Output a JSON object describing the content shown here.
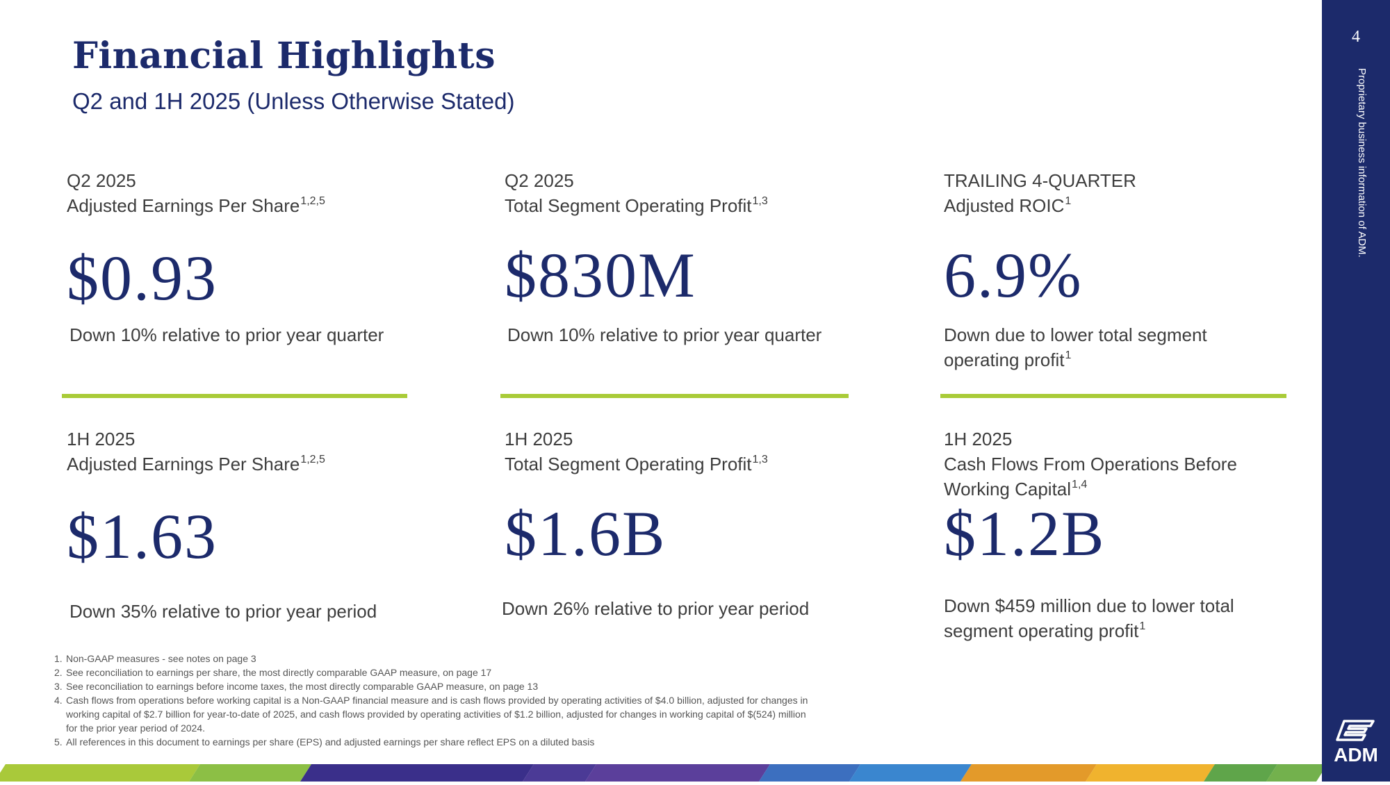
{
  "header": {
    "title": "Financial Highlights",
    "subtitle": "Q2 and 1H 2025 (Unless Otherwise Stated)"
  },
  "metrics": [
    {
      "period": "Q2 2025",
      "label": "Adjusted Earnings Per Share",
      "sup": "1,2,5",
      "value": "$0.93",
      "desc": "Down 10% relative to prior year quarter"
    },
    {
      "period": "Q2 2025",
      "label": "Total Segment Operating Profit",
      "sup": "1,3",
      "value": "$830M",
      "desc": "Down 10% relative to prior year quarter"
    },
    {
      "period": "TRAILING 4-QUARTER",
      "label": "Adjusted ROIC",
      "sup": "1",
      "value": "6.9%",
      "desc_line1": "Down due to lower total segment",
      "desc_line2": "operating profit",
      "desc_sup": "1"
    },
    {
      "period": "1H 2025",
      "label": "Adjusted Earnings Per Share",
      "sup": "1,2,5",
      "value": "$1.63",
      "desc": "Down 35% relative to prior year period"
    },
    {
      "period": "1H 2025",
      "label": "Total Segment Operating Profit",
      "sup": "1,3",
      "value": "$1.6B",
      "desc": "Down 26% relative to prior year period"
    },
    {
      "period": "1H 2025",
      "label_line1": "Cash Flows From Operations Before",
      "label_line2": "Working Capital",
      "sup": "1,4",
      "value": "$1.2B",
      "desc_line1": "Down $459 million due to lower total",
      "desc_line2": "segment operating profit",
      "desc_sup": "1"
    }
  ],
  "footnotes": [
    {
      "num": "1.",
      "text": "Non-GAAP measures - see notes on page 3"
    },
    {
      "num": "2.",
      "text": "See reconciliation to earnings per share, the most directly comparable GAAP measure, on page 17"
    },
    {
      "num": "3.",
      "text": "See reconciliation to earnings before income taxes, the most directly comparable GAAP measure, on page 13"
    },
    {
      "num": "4.",
      "text": "Cash flows from operations before working capital is a Non-GAAP financial measure and is cash flows provided by operating activities of $4.0 billion, adjusted for changes in working capital of $2.7 billion for year-to-date of 2025, and cash flows provided by operating activities of $1.2 billion, adjusted for changes in working capital of $(524) million for the prior year period of 2024."
    },
    {
      "num": "5.",
      "text": "All references in this document to earnings per share (EPS) and adjusted earnings per share reflect EPS on a diluted basis"
    }
  ],
  "sidebar": {
    "page_number": "4",
    "vertical_text": "Proprietary business information of ADM.",
    "logo_text": "ADM"
  },
  "colors": {
    "navy": "#1c2a6b",
    "accent_green": "#a9cb38",
    "text_gray": "#3d3d3d"
  },
  "stripe_colors": [
    "#a9c93a",
    "#8cbf45",
    "#3a2f8a",
    "#4b3a96",
    "#5b3f9b",
    "#3c6fbf",
    "#3a86cf",
    "#e39a2a",
    "#f0b32e",
    "#5fa54a",
    "#73b14d"
  ]
}
